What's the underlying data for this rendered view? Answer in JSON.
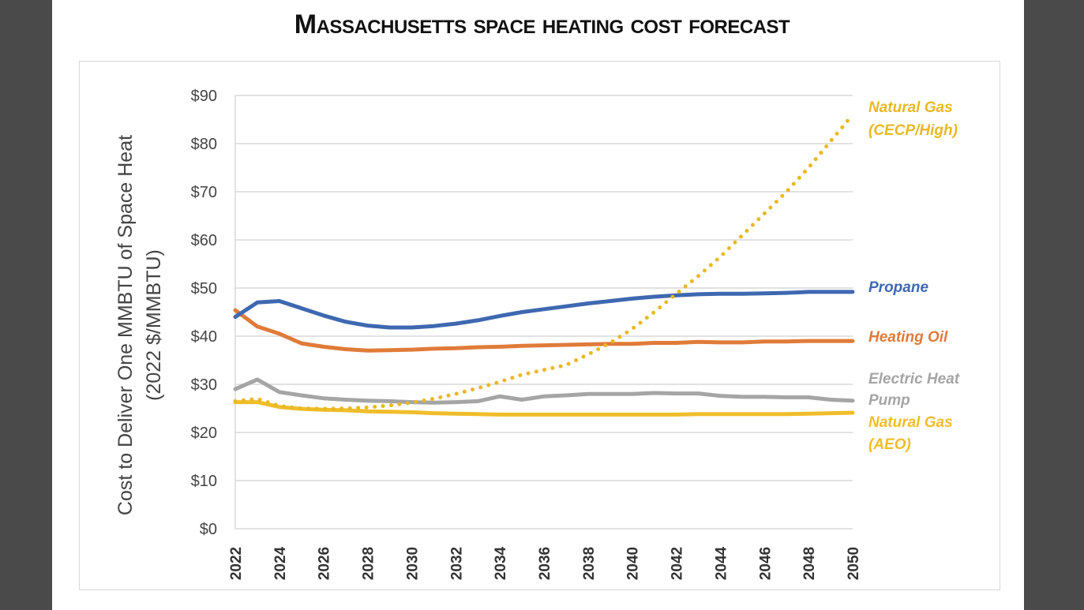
{
  "chart_data": {
    "type": "line",
    "title": "Massachusetts space heating cost forecast",
    "ylabel": [
      "Cost to Deliver One MMBTU of Space Heat",
      "(2022 $/MMBTU)"
    ],
    "xlabel": "",
    "ylim": [
      0,
      90
    ],
    "xlim": [
      2022,
      2050
    ],
    "grid": true,
    "legend": "right (inline labels)",
    "y_ticks": [
      "$0",
      "$10",
      "$20",
      "$30",
      "$40",
      "$50",
      "$60",
      "$70",
      "$80",
      "$90"
    ],
    "x_ticks": [
      "2022",
      "2024",
      "2026",
      "2028",
      "2030",
      "2032",
      "2034",
      "2036",
      "2038",
      "2040",
      "2042",
      "2044",
      "2046",
      "2048",
      "2050"
    ],
    "x": [
      2022,
      2023,
      2024,
      2025,
      2026,
      2027,
      2028,
      2029,
      2030,
      2031,
      2032,
      2033,
      2034,
      2035,
      2036,
      2037,
      2038,
      2039,
      2040,
      2041,
      2042,
      2043,
      2044,
      2045,
      2046,
      2047,
      2048,
      2049,
      2050
    ],
    "series": [
      {
        "name": "Natural Gas (CECP/High)",
        "label_lines": [
          "Natural Gas",
          "(CECP/High)"
        ],
        "color": "#e8b923",
        "style": "dotted",
        "values": [
          26.5,
          27,
          25.5,
          25,
          24.9,
          25,
          25.2,
          25.6,
          26.2,
          27,
          28,
          29.2,
          30.5,
          32,
          33,
          34,
          36.2,
          38.6,
          41.5,
          45,
          48.8,
          52.5,
          56.5,
          61,
          65.5,
          70,
          75,
          80.5,
          86
        ]
      },
      {
        "name": "Propane",
        "label_lines": [
          "Propane"
        ],
        "color": "#3e68b0",
        "style": "solid",
        "values": [
          44,
          47,
          47.3,
          45.8,
          44.3,
          43,
          42.2,
          41.8,
          41.8,
          42.1,
          42.6,
          43.3,
          44.2,
          45,
          45.6,
          46.2,
          46.8,
          47.3,
          47.8,
          48.2,
          48.5,
          48.7,
          48.8,
          48.8,
          48.9,
          49,
          49.2,
          49.2,
          49.2
        ]
      },
      {
        "name": "Heating Oil",
        "label_lines": [
          "Heating Oil"
        ],
        "color": "#e07b39",
        "style": "solid",
        "values": [
          45.4,
          42,
          40.5,
          38.5,
          37.8,
          37.3,
          37,
          37.1,
          37.2,
          37.4,
          37.5,
          37.7,
          37.8,
          38,
          38.1,
          38.2,
          38.3,
          38.4,
          38.4,
          38.6,
          38.6,
          38.8,
          38.7,
          38.7,
          38.9,
          38.9,
          39,
          39,
          39
        ]
      },
      {
        "name": "Electric Heat Pump",
        "label_lines": [
          "Electric Heat",
          "Pump"
        ],
        "color": "#a5a5a5",
        "style": "solid",
        "values": [
          29,
          31,
          28.4,
          27.7,
          27.1,
          26.8,
          26.6,
          26.5,
          26.3,
          26.2,
          26.3,
          26.5,
          27.5,
          26.8,
          27.5,
          27.7,
          28,
          28,
          28,
          28.2,
          28.1,
          28.1,
          27.6,
          27.4,
          27.4,
          27.3,
          27.3,
          26.8,
          26.6
        ]
      },
      {
        "name": "Natural Gas (AEO)",
        "label_lines": [
          "Natural Gas",
          "(AEO)"
        ],
        "color": "#f0bd2a",
        "style": "solid",
        "values": [
          26.3,
          26.3,
          25.3,
          24.9,
          24.7,
          24.6,
          24.4,
          24.3,
          24.2,
          24,
          23.9,
          23.8,
          23.7,
          23.7,
          23.7,
          23.7,
          23.7,
          23.7,
          23.7,
          23.7,
          23.7,
          23.8,
          23.8,
          23.8,
          23.8,
          23.8,
          23.9,
          24,
          24.1
        ]
      }
    ]
  }
}
